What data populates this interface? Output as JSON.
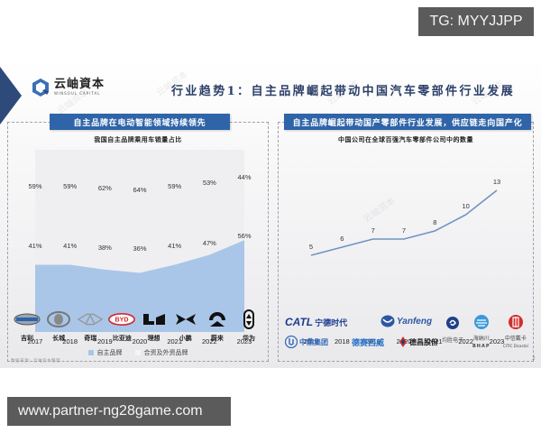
{
  "overlays": {
    "tg_badge": "TG: MYYJJPP",
    "url_badge": "www.partner-ng28game.com"
  },
  "slide": {
    "logo": {
      "cn": "云岫資本",
      "en": "WINSOUL CAPITAL"
    },
    "title": "行业趋势1：自主品牌崛起带动中国汽车零部件行业发展",
    "left_panel": {
      "banner": "自主品牌在电动智能领域持续领先",
      "legend": [
        "自主品牌",
        "合资及外资品牌"
      ]
    },
    "right_panel": {
      "banner": "自主品牌崛起带动国产零部件行业发展，供应链走向国产化"
    },
    "brands": [
      "吉利",
      "长城",
      "奇瑞",
      "比亚迪",
      "理想",
      "小鹏",
      "蔚来",
      "华为"
    ],
    "suppliers": {
      "catl_en": "CATL",
      "catl_cn": "宁德时代",
      "yanfeng": "Yanfeng",
      "zhongding": "中鼎集团",
      "zhongding_en": "ZHONGDING GROUP",
      "desay": "德赛西威",
      "dechang": "德昌股份",
      "junsheng": "均胜电子",
      "hasco": "海纳川",
      "hasco_en": "BHAP",
      "citic": "中信戴卡",
      "citic_en": "CITIC Dicastal"
    },
    "source": "数据来源：云岫资本整理",
    "page_number": "2"
  },
  "chart_data": [
    {
      "type": "area",
      "title": "我国自主品牌乘用车销量占比",
      "categories": [
        "2017",
        "2018",
        "2019",
        "2020",
        "2021",
        "2022",
        "2023"
      ],
      "series": [
        {
          "name": "自主品牌",
          "values": [
            41,
            41,
            38,
            36,
            41,
            47,
            56
          ],
          "labels": [
            "41%",
            "41%",
            "38%",
            "36%",
            "41%",
            "47%",
            "56%"
          ],
          "color": "#a9c6e8"
        },
        {
          "name": "合资及外资品牌",
          "values": [
            59,
            59,
            62,
            64,
            59,
            53,
            44
          ],
          "labels": [
            "59%",
            "59%",
            "62%",
            "64%",
            "59%",
            "53%",
            "44%"
          ],
          "color": "#efeff1"
        }
      ],
      "stacked": true,
      "ylim": [
        0,
        100
      ],
      "xlabel": "",
      "ylabel": "",
      "grid": false,
      "legend_position": "bottom"
    },
    {
      "type": "line",
      "title": "中国公司在全球百强汽车零部件公司中的数量",
      "categories": [
        "2017",
        "2018",
        "2019",
        "2020",
        "2021",
        "2022",
        "2023"
      ],
      "series": [
        {
          "name": "数量",
          "values": [
            5,
            6,
            7,
            7,
            8,
            10,
            13
          ],
          "color": "#6f93c4"
        }
      ],
      "xlabel": "",
      "ylabel": "",
      "grid": false,
      "legend_position": "none"
    }
  ]
}
